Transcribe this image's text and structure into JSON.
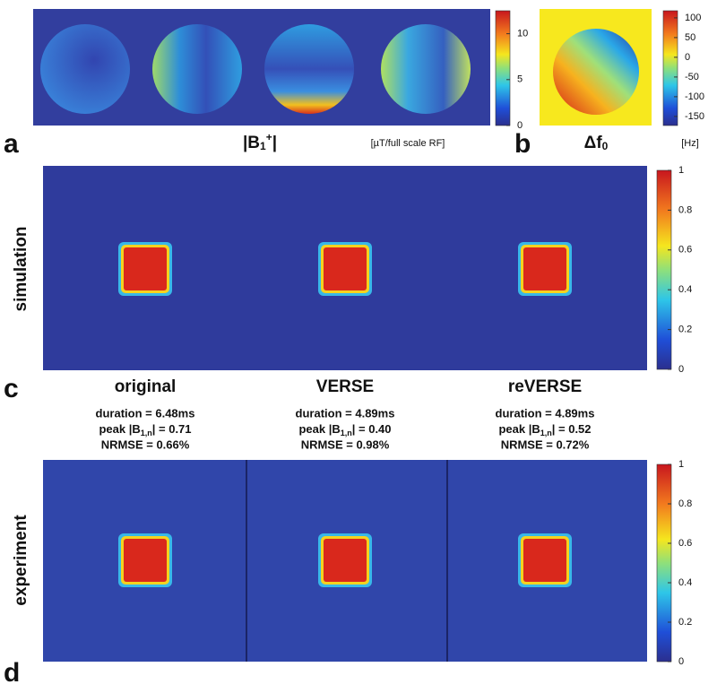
{
  "panel_a": {
    "letter": "a",
    "title": {
      "main": "|B",
      "sub": "1",
      "sup": "+",
      "end": "|"
    },
    "unit": "[µT/full scale RF]",
    "colorbar_lim": [
      0,
      12.5
    ],
    "colorbar_ticks": [
      0,
      5,
      10
    ]
  },
  "panel_b": {
    "letter": "b",
    "title": {
      "main": "Δf",
      "sub": "0"
    },
    "unit": "[Hz]",
    "colorbar_lim": [
      -173,
      118
    ],
    "colorbar_ticks": [
      -150,
      -100,
      -50,
      0,
      50,
      100
    ]
  },
  "panel_c": {
    "letter": "c",
    "row_label": "simulation",
    "colorbar_lim": [
      0,
      1
    ],
    "colorbar_ticks": [
      0,
      0.2,
      0.4,
      0.6,
      0.8,
      1
    ]
  },
  "columns": [
    {
      "title": "original",
      "duration": "duration = 6.48ms",
      "peak": {
        "pre": "peak |B",
        "sub": "1,n",
        "post": "| = 0.71"
      },
      "nrmse": "NRMSE = 0.66%"
    },
    {
      "title": "VERSE",
      "duration": "duration = 4.89ms",
      "peak": {
        "pre": "peak |B",
        "sub": "1,n",
        "post": "| = 0.40"
      },
      "nrmse": "NRMSE = 0.98%"
    },
    {
      "title": "reVERSE",
      "duration": "duration = 4.89ms",
      "peak": {
        "pre": "peak |B",
        "sub": "1,n",
        "post": "| = 0.52"
      },
      "nrmse": "NRMSE = 0.72%"
    }
  ],
  "panel_d": {
    "letter": "d",
    "row_label": "experiment",
    "colorbar_lim": [
      0,
      1
    ],
    "colorbar_ticks": [
      0,
      0.2,
      0.4,
      0.6,
      0.8,
      1
    ]
  }
}
